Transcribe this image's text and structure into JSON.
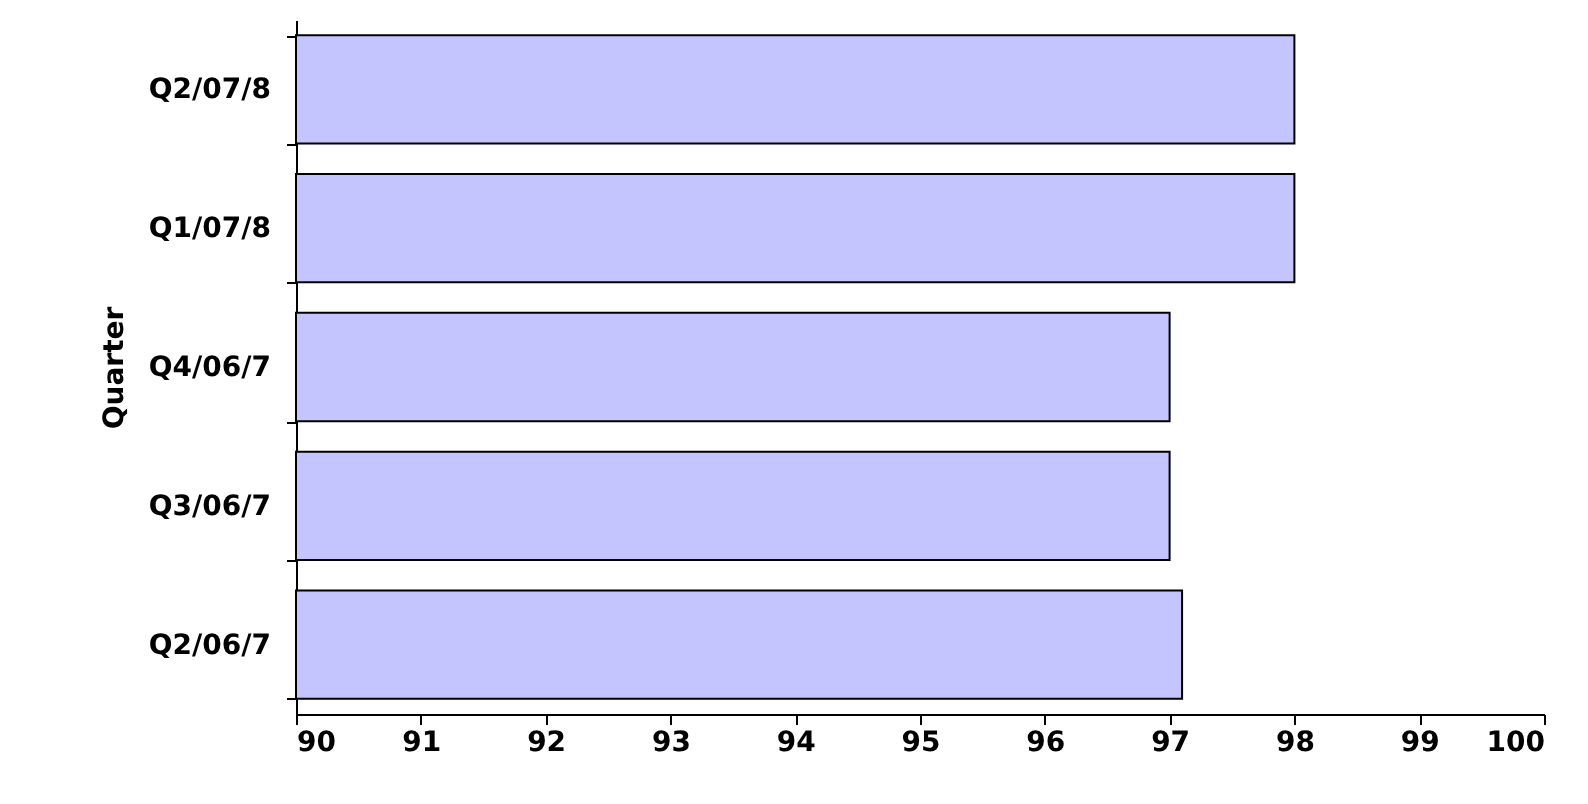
{
  "chart_data": {
    "type": "bar",
    "orientation": "horizontal",
    "ylabel": "Quarter",
    "categories": [
      "Q2/07/8",
      "Q1/07/8",
      "Q4/06/7",
      "Q3/06/7",
      "Q2/06/7"
    ],
    "values": [
      98,
      98,
      97,
      97,
      97.1
    ],
    "color": "#c4c4ff",
    "xlim": [
      90,
      100
    ],
    "xticks": [
      90,
      91,
      92,
      93,
      94,
      95,
      96,
      97,
      98,
      99,
      100
    ],
    "grid": false
  }
}
